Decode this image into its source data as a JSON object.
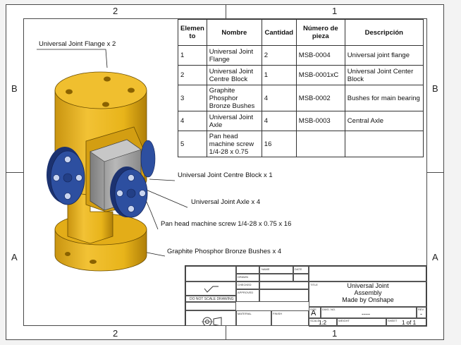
{
  "zones": {
    "top_left": "2",
    "top_right": "1",
    "bottom_left": "2",
    "bottom_right": "1",
    "left_top": "B",
    "left_bottom": "A",
    "right_top": "B",
    "right_bottom": "A"
  },
  "bom": {
    "headers": [
      "Elemen to",
      "Nombre",
      "Cantidad",
      "Número de pieza",
      "Descripción"
    ],
    "rows": [
      {
        "item": "1",
        "name": "Universal Joint Flange",
        "qty": "2",
        "part": "MSB-0004",
        "desc": "Universal joint flange"
      },
      {
        "item": "2",
        "name": "Universal Joint Centre Block",
        "qty": "1",
        "part": "MSB-0001xC",
        "desc": "Universal Joint Center Block"
      },
      {
        "item": "3",
        "name": "Graphite Phosphor Bronze Bushes",
        "qty": "4",
        "part": "MSB-0002",
        "desc": "Bushes for main bearing"
      },
      {
        "item": "4",
        "name": "Universal Joint Axle",
        "qty": "4",
        "part": "MSB-0003",
        "desc": "Central Axle"
      },
      {
        "item": "5",
        "name": "Pan head machine screw 1/4-28 x 0.75",
        "qty": "16",
        "part": "",
        "desc": ""
      }
    ]
  },
  "callouts": {
    "flange": "Universal Joint Flange  x 2",
    "centre_block": "Universal Joint Centre Block  x 1",
    "axle": "Universal Joint Axle  x 4",
    "screw": "Pan head machine screw 1/4-28 x 0.75  x 16",
    "bushes": "Graphite Phosphor Bronze Bushes  x 4"
  },
  "title_block": {
    "title_line1": "Universal Joint",
    "title_line2": "Assembly",
    "title_line3": "Made by Onshape",
    "size": "A",
    "dwg_no": "----",
    "rev": "-",
    "scale": "1:2",
    "sheet": "1 of 1",
    "do_not_scale": "DO NOT SCALE DRAWING",
    "labels": {
      "name": "NAME",
      "date": "DATE",
      "drawn": "DRAWN",
      "checked": "CHECKED",
      "approved": "APPROVED",
      "material": "MATERIAL",
      "finish": "FINISH",
      "title": "TITLE",
      "size_lbl": "SIZE",
      "dwg_lbl": "DWG. NO.",
      "rev_lbl": "REV",
      "scale_lbl": "SCALE",
      "sheet_lbl": "SHEET",
      "weight_lbl": "WEIGHT"
    }
  },
  "colors": {
    "yellow": "#e8b41a",
    "yellow_dark": "#b98a0a",
    "blue": "#2d4fa0",
    "blue_dark": "#1c3270",
    "gray": "#9a9a9a"
  }
}
